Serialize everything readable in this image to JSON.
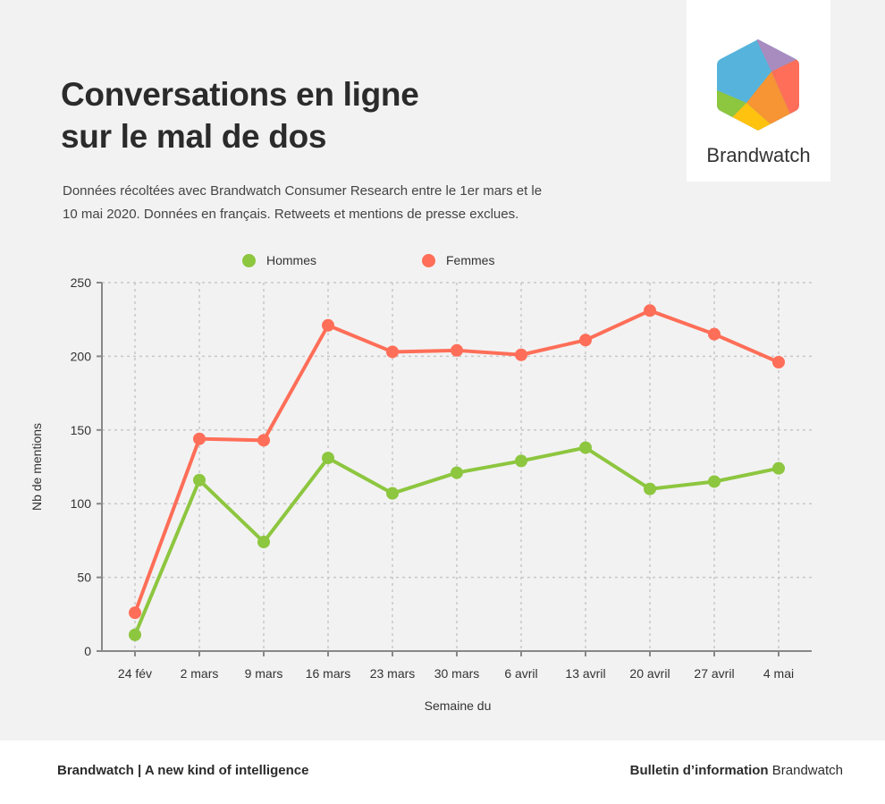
{
  "header": {
    "title_line1": "Conversations en ligne",
    "title_line2": "sur le mal de dos",
    "subtitle_line1": "Données récoltées avec Brandwatch Consumer Research entre le 1er mars et le",
    "subtitle_line2": "10 mai 2020. Données en français. Retweets et mentions de presse exclues.",
    "logo_text": "Brandwatch"
  },
  "chart_data": {
    "type": "line",
    "xlabel": "Semaine du",
    "ylabel": "Nb de mentions",
    "ylim": [
      0,
      250
    ],
    "yticks": [
      0,
      50,
      100,
      150,
      200,
      250
    ],
    "grid": true,
    "legend_placement": "top-center",
    "categories": [
      "24 fév",
      "2 mars",
      "9 mars",
      "16 mars",
      "23 mars",
      "30 mars",
      "6 avril",
      "13 avril",
      "20 avril",
      "27 avril",
      "4 mai"
    ],
    "series": [
      {
        "name": "Hommes",
        "color": "#8dc63f",
        "values": [
          11,
          116,
          74,
          131,
          107,
          121,
          129,
          138,
          110,
          115,
          124
        ]
      },
      {
        "name": "Femmes",
        "color": "#ff6e58",
        "values": [
          26,
          144,
          143,
          221,
          203,
          204,
          201,
          211,
          231,
          215,
          196
        ]
      }
    ]
  },
  "footer": {
    "left": "Brandwatch | A new kind of intelligence",
    "right_bold": "Bulletin d’information",
    "right_regular": "Brandwatch"
  }
}
